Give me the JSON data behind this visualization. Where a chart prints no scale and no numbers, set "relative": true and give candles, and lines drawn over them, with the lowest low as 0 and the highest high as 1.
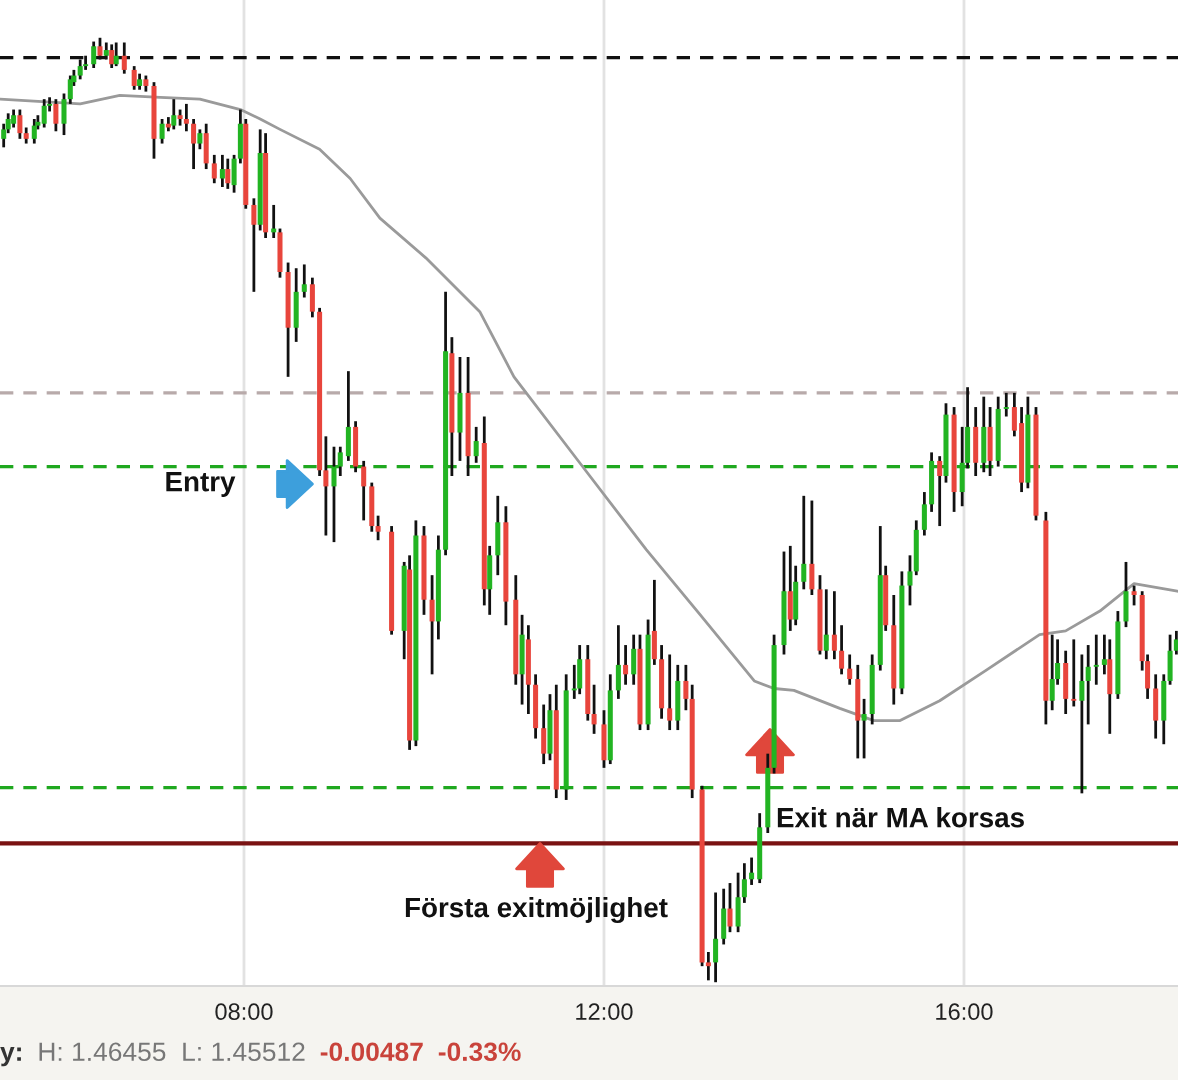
{
  "chart_data": {
    "type": "candlestick",
    "relative": true,
    "tick_labels": "x",
    "grid": "x",
    "xlim": [
      5.289,
      18.378
    ],
    "xticks": [
      {
        "value": 8,
        "label": "08:00"
      },
      {
        "value": 12,
        "label": "12:00"
      },
      {
        "value": 16,
        "label": "16:00"
      }
    ],
    "x": [
      5.33,
      5.38,
      5.44,
      5.51,
      5.58,
      5.67,
      5.71,
      5.78,
      5.84,
      5.91,
      6.0,
      6.07,
      6.11,
      6.18,
      6.24,
      6.33,
      6.4,
      6.47,
      6.53,
      6.58,
      6.67,
      6.78,
      6.84,
      6.91,
      7.0,
      7.09,
      7.16,
      7.22,
      7.29,
      7.36,
      7.44,
      7.51,
      7.58,
      7.67,
      7.76,
      7.82,
      7.89,
      7.96,
      8.02,
      8.11,
      8.18,
      8.24,
      8.33,
      8.4,
      8.49,
      8.58,
      8.67,
      8.76,
      8.84,
      8.91,
      9.0,
      9.07,
      9.16,
      9.24,
      9.33,
      9.42,
      9.49,
      9.64,
      9.78,
      9.84,
      9.91,
      10.0,
      10.09,
      10.16,
      10.24,
      10.31,
      10.4,
      10.49,
      10.58,
      10.67,
      10.73,
      10.82,
      10.91,
      11.02,
      11.09,
      11.16,
      11.24,
      11.33,
      11.4,
      11.47,
      11.58,
      11.67,
      11.73,
      11.82,
      11.89,
      12.0,
      12.07,
      12.16,
      12.24,
      12.33,
      12.4,
      12.49,
      12.56,
      12.64,
      12.73,
      12.82,
      12.91,
      12.98,
      13.09,
      13.16,
      13.24,
      13.33,
      13.4,
      13.49,
      13.56,
      13.64,
      13.73,
      13.82,
      13.89,
      14.0,
      14.07,
      14.13,
      14.22,
      14.31,
      14.4,
      14.47,
      14.56,
      14.64,
      14.73,
      14.82,
      14.89,
      14.98,
      15.07,
      15.13,
      15.22,
      15.31,
      15.4,
      15.47,
      15.56,
      15.64,
      15.73,
      15.8,
      15.89,
      15.98,
      16.04,
      16.13,
      16.22,
      16.29,
      16.38,
      16.47,
      16.56,
      16.64,
      16.71,
      16.8,
      16.91,
      16.98,
      17.04,
      17.13,
      17.22,
      17.31,
      17.38,
      17.47,
      17.56,
      17.62,
      17.71,
      17.8,
      17.89,
      17.98,
      18.04,
      18.13,
      18.22,
      18.29,
      18.36
    ],
    "ohlc": [
      [
        0.893,
        0.909,
        0.884,
        0.903
      ],
      [
        0.903,
        0.92,
        0.899,
        0.914
      ],
      [
        0.909,
        0.924,
        0.905,
        0.918
      ],
      [
        0.918,
        0.924,
        0.893,
        0.899
      ],
      [
        0.899,
        0.905,
        0.888,
        0.893
      ],
      [
        0.893,
        0.914,
        0.888,
        0.907
      ],
      [
        0.907,
        0.918,
        0.903,
        0.911
      ],
      [
        0.909,
        0.935,
        0.905,
        0.928
      ],
      [
        0.928,
        0.937,
        0.922,
        0.93
      ],
      [
        0.93,
        0.935,
        0.901,
        0.909
      ],
      [
        0.909,
        0.941,
        0.897,
        0.935
      ],
      [
        0.935,
        0.96,
        0.93,
        0.956
      ],
      [
        0.953,
        0.966,
        0.949,
        0.96
      ],
      [
        0.96,
        0.977,
        0.956,
        0.97
      ],
      [
        0.97,
        0.981,
        0.966,
        0.972
      ],
      [
        0.972,
        0.996,
        0.968,
        0.991
      ],
      [
        0.991,
        1.0,
        0.977,
        0.981
      ],
      [
        0.981,
        0.995,
        0.977,
        0.987
      ],
      [
        0.987,
        0.993,
        0.968,
        0.972
      ],
      [
        0.972,
        0.995,
        0.97,
        0.981
      ],
      [
        0.981,
        0.995,
        0.962,
        0.966
      ],
      [
        0.966,
        0.97,
        0.945,
        0.949
      ],
      [
        0.949,
        0.962,
        0.945,
        0.956
      ],
      [
        0.956,
        0.96,
        0.943,
        0.949
      ],
      [
        0.949,
        0.953,
        0.872,
        0.893
      ],
      [
        0.893,
        0.914,
        0.888,
        0.909
      ],
      [
        0.909,
        0.916,
        0.901,
        0.905
      ],
      [
        0.907,
        0.935,
        0.903,
        0.918
      ],
      [
        0.918,
        0.924,
        0.907,
        0.914
      ],
      [
        0.914,
        0.93,
        0.901,
        0.909
      ],
      [
        0.909,
        0.914,
        0.861,
        0.888
      ],
      [
        0.888,
        0.903,
        0.882,
        0.899
      ],
      [
        0.899,
        0.909,
        0.861,
        0.867
      ],
      [
        0.867,
        0.876,
        0.846,
        0.851
      ],
      [
        0.851,
        0.876,
        0.842,
        0.861
      ],
      [
        0.861,
        0.872,
        0.84,
        0.846
      ],
      [
        0.844,
        0.876,
        0.836,
        0.872
      ],
      [
        0.872,
        0.924,
        0.867,
        0.909
      ],
      [
        0.909,
        0.914,
        0.819,
        0.823
      ],
      [
        0.823,
        0.83,
        0.731,
        0.802
      ],
      [
        0.802,
        0.903,
        0.796,
        0.878
      ],
      [
        0.878,
        0.899,
        0.788,
        0.794
      ],
      [
        0.794,
        0.823,
        0.788,
        0.798
      ],
      [
        0.794,
        0.798,
        0.746,
        0.752
      ],
      [
        0.752,
        0.762,
        0.641,
        0.693
      ],
      [
        0.693,
        0.756,
        0.678,
        0.731
      ],
      [
        0.731,
        0.76,
        0.725,
        0.739
      ],
      [
        0.739,
        0.746,
        0.704,
        0.71
      ],
      [
        0.71,
        0.714,
        0.536,
        0.542
      ],
      [
        0.542,
        0.578,
        0.473,
        0.525
      ],
      [
        0.525,
        0.567,
        0.466,
        0.546
      ],
      [
        0.546,
        0.567,
        0.536,
        0.561
      ],
      [
        0.557,
        0.647,
        0.552,
        0.588
      ],
      [
        0.588,
        0.594,
        0.54,
        0.546
      ],
      [
        0.546,
        0.552,
        0.489,
        0.525
      ],
      [
        0.525,
        0.529,
        0.477,
        0.483
      ],
      [
        0.483,
        0.494,
        0.468,
        0.477
      ],
      [
        0.477,
        0.483,
        0.368,
        0.372
      ],
      [
        0.372,
        0.445,
        0.342,
        0.441
      ],
      [
        0.437,
        0.452,
        0.246,
        0.256
      ],
      [
        0.256,
        0.489,
        0.25,
        0.473
      ],
      [
        0.473,
        0.483,
        0.389,
        0.405
      ],
      [
        0.405,
        0.431,
        0.326,
        0.382
      ],
      [
        0.382,
        0.473,
        0.363,
        0.458
      ],
      [
        0.458,
        0.731,
        0.452,
        0.668
      ],
      [
        0.666,
        0.683,
        0.536,
        0.582
      ],
      [
        0.582,
        0.662,
        0.552,
        0.624
      ],
      [
        0.624,
        0.662,
        0.536,
        0.557
      ],
      [
        0.557,
        0.588,
        0.55,
        0.573
      ],
      [
        0.571,
        0.599,
        0.399,
        0.416
      ],
      [
        0.416,
        0.462,
        0.389,
        0.452
      ],
      [
        0.452,
        0.515,
        0.431,
        0.487
      ],
      [
        0.487,
        0.504,
        0.378,
        0.403
      ],
      [
        0.405,
        0.431,
        0.315,
        0.326
      ],
      [
        0.326,
        0.389,
        0.294,
        0.368
      ],
      [
        0.363,
        0.378,
        0.284,
        0.315
      ],
      [
        0.315,
        0.326,
        0.258,
        0.269
      ],
      [
        0.269,
        0.294,
        0.231,
        0.242
      ],
      [
        0.242,
        0.305,
        0.235,
        0.288
      ],
      [
        0.288,
        0.315,
        0.195,
        0.204
      ],
      [
        0.204,
        0.326,
        0.193,
        0.309
      ],
      [
        0.309,
        0.336,
        0.3,
        0.311
      ],
      [
        0.311,
        0.357,
        0.305,
        0.342
      ],
      [
        0.342,
        0.357,
        0.277,
        0.284
      ],
      [
        0.284,
        0.315,
        0.263,
        0.273
      ],
      [
        0.273,
        0.288,
        0.227,
        0.235
      ],
      [
        0.235,
        0.326,
        0.231,
        0.309
      ],
      [
        0.309,
        0.378,
        0.3,
        0.336
      ],
      [
        0.336,
        0.357,
        0.315,
        0.326
      ],
      [
        0.326,
        0.368,
        0.315,
        0.353
      ],
      [
        0.353,
        0.368,
        0.267,
        0.273
      ],
      [
        0.273,
        0.384,
        0.267,
        0.368
      ],
      [
        0.372,
        0.426,
        0.336,
        0.342
      ],
      [
        0.342,
        0.357,
        0.279,
        0.29
      ],
      [
        0.29,
        0.347,
        0.267,
        0.277
      ],
      [
        0.277,
        0.336,
        0.267,
        0.319
      ],
      [
        0.319,
        0.336,
        0.288,
        0.3
      ],
      [
        0.3,
        0.315,
        0.195,
        0.204
      ],
      [
        0.204,
        0.208,
        0.017,
        0.021
      ],
      [
        0.021,
        0.032,
        0.002,
        0.017
      ],
      [
        0.021,
        0.095,
        0.0,
        0.046
      ],
      [
        0.046,
        0.099,
        0.04,
        0.078
      ],
      [
        0.078,
        0.105,
        0.053,
        0.059
      ],
      [
        0.059,
        0.116,
        0.053,
        0.09
      ],
      [
        0.09,
        0.126,
        0.084,
        0.109
      ],
      [
        0.109,
        0.132,
        0.103,
        0.116
      ],
      [
        0.109,
        0.179,
        0.105,
        0.164
      ],
      [
        0.164,
        0.242,
        0.158,
        0.227
      ],
      [
        0.227,
        0.368,
        0.221,
        0.357
      ],
      [
        0.357,
        0.456,
        0.347,
        0.414
      ],
      [
        0.414,
        0.462,
        0.372,
        0.384
      ],
      [
        0.384,
        0.441,
        0.378,
        0.424
      ],
      [
        0.424,
        0.515,
        0.416,
        0.443
      ],
      [
        0.443,
        0.51,
        0.41,
        0.416
      ],
      [
        0.416,
        0.431,
        0.347,
        0.351
      ],
      [
        0.351,
        0.416,
        0.342,
        0.368
      ],
      [
        0.368,
        0.414,
        0.342,
        0.351
      ],
      [
        0.351,
        0.378,
        0.326,
        0.332
      ],
      [
        0.332,
        0.347,
        0.315,
        0.321
      ],
      [
        0.321,
        0.336,
        0.237,
        0.277
      ],
      [
        0.277,
        0.3,
        0.237,
        0.284
      ],
      [
        0.284,
        0.347,
        0.273,
        0.336
      ],
      [
        0.336,
        0.483,
        0.33,
        0.431
      ],
      [
        0.431,
        0.441,
        0.372,
        0.378
      ],
      [
        0.378,
        0.41,
        0.294,
        0.311
      ],
      [
        0.311,
        0.435,
        0.305,
        0.42
      ],
      [
        0.42,
        0.452,
        0.399,
        0.435
      ],
      [
        0.435,
        0.489,
        0.431,
        0.479
      ],
      [
        0.479,
        0.519,
        0.473,
        0.506
      ],
      [
        0.506,
        0.561,
        0.498,
        0.552
      ],
      [
        0.552,
        0.557,
        0.483,
        0.536
      ],
      [
        0.536,
        0.613,
        0.529,
        0.601
      ],
      [
        0.601,
        0.609,
        0.498,
        0.519
      ],
      [
        0.519,
        0.588,
        0.504,
        0.55
      ],
      [
        0.55,
        0.63,
        0.544,
        0.588
      ],
      [
        0.588,
        0.609,
        0.536,
        0.55
      ],
      [
        0.55,
        0.62,
        0.54,
        0.588
      ],
      [
        0.588,
        0.609,
        0.536,
        0.552
      ],
      [
        0.552,
        0.62,
        0.546,
        0.607
      ],
      [
        0.607,
        0.624,
        0.599,
        0.609
      ],
      [
        0.609,
        0.624,
        0.578,
        0.584
      ],
      [
        0.592,
        0.609,
        0.519,
        0.529
      ],
      [
        0.529,
        0.62,
        0.523,
        0.601
      ],
      [
        0.601,
        0.609,
        0.489,
        0.494
      ],
      [
        0.489,
        0.498,
        0.273,
        0.298
      ],
      [
        0.298,
        0.368,
        0.288,
        0.321
      ],
      [
        0.321,
        0.363,
        0.315,
        0.338
      ],
      [
        0.338,
        0.351,
        0.284,
        0.3
      ],
      [
        0.3,
        0.363,
        0.292,
        0.298
      ],
      [
        0.298,
        0.347,
        0.2,
        0.319
      ],
      [
        0.319,
        0.357,
        0.273,
        0.334
      ],
      [
        0.334,
        0.368,
        0.315,
        0.336
      ],
      [
        0.336,
        0.368,
        0.326,
        0.342
      ],
      [
        0.342,
        0.363,
        0.263,
        0.305
      ],
      [
        0.305,
        0.393,
        0.3,
        0.382
      ],
      [
        0.382,
        0.445,
        0.376,
        0.414
      ],
      [
        0.414,
        0.42,
        0.399,
        0.41
      ],
      [
        0.41,
        0.414,
        0.33,
        0.34
      ],
      [
        0.34,
        0.347,
        0.3,
        0.311
      ],
      [
        0.311,
        0.326,
        0.258,
        0.277
      ],
      [
        0.277,
        0.326,
        0.252,
        0.319
      ],
      [
        0.319,
        0.368,
        0.315,
        0.351
      ],
      [
        0.351,
        0.372,
        0.347,
        0.363
      ]
    ],
    "colors": [
      "#22b422",
      "#22b422",
      "#22b422",
      "#e8453c",
      "#e8453c",
      "#22b422",
      "#22b422",
      "#22b422",
      "#22b422",
      "#e8453c",
      "#22b422",
      "#22b422",
      "#22b422",
      "#22b422",
      "#22b422",
      "#22b422",
      "#e8453c",
      "#22b422",
      "#e8453c",
      "#22b422",
      "#e8453c",
      "#e8453c",
      "#22b422",
      "#e8453c",
      "#e8453c",
      "#22b422",
      "#e8453c",
      "#22b422",
      "#e8453c",
      "#e8453c",
      "#e8453c",
      "#22b422",
      "#e8453c",
      "#e8453c",
      "#22b422",
      "#e8453c",
      "#22b422",
      "#22b422",
      "#e8453c",
      "#e8453c",
      "#22b422",
      "#e8453c",
      "#22b422",
      "#e8453c",
      "#e8453c",
      "#22b422",
      "#22b422",
      "#e8453c",
      "#e8453c",
      "#e8453c",
      "#22b422",
      "#22b422",
      "#22b422",
      "#e8453c",
      "#e8453c",
      "#e8453c",
      "#e8453c",
      "#e8453c",
      "#22b422",
      "#e8453c",
      "#22b422",
      "#e8453c",
      "#e8453c",
      "#22b422",
      "#22b422",
      "#e8453c",
      "#22b422",
      "#e8453c",
      "#22b422",
      "#e8453c",
      "#22b422",
      "#22b422",
      "#e8453c",
      "#e8453c",
      "#22b422",
      "#e8453c",
      "#e8453c",
      "#e8453c",
      "#22b422",
      "#e8453c",
      "#22b422",
      "#22b422",
      "#22b422",
      "#e8453c",
      "#e8453c",
      "#e8453c",
      "#22b422",
      "#22b422",
      "#e8453c",
      "#22b422",
      "#e8453c",
      "#22b422",
      "#e8453c",
      "#e8453c",
      "#e8453c",
      "#22b422",
      "#e8453c",
      "#e8453c",
      "#e8453c",
      "#e8453c",
      "#22b422",
      "#22b422",
      "#e8453c",
      "#22b422",
      "#22b422",
      "#22b422",
      "#22b422",
      "#22b422",
      "#22b422",
      "#22b422",
      "#e8453c",
      "#22b422",
      "#22b422",
      "#e8453c",
      "#e8453c",
      "#22b422",
      "#e8453c",
      "#e8453c",
      "#e8453c",
      "#e8453c",
      "#22b422",
      "#22b422",
      "#22b422",
      "#e8453c",
      "#e8453c",
      "#22b422",
      "#22b422",
      "#22b422",
      "#22b422",
      "#22b422",
      "#e8453c",
      "#22b422",
      "#e8453c",
      "#22b422",
      "#22b422",
      "#e8453c",
      "#22b422",
      "#e8453c",
      "#22b422",
      "#22b422",
      "#e8453c",
      "#e8453c",
      "#22b422",
      "#e8453c",
      "#e8453c",
      "#22b422",
      "#22b422",
      "#e8453c",
      "#e8453c",
      "#22b422",
      "#22b422",
      "#22b422",
      "#22b422",
      "#e8453c",
      "#22b422",
      "#22b422",
      "#e8453c",
      "#e8453c",
      "#e8453c",
      "#e8453c",
      "#22b422",
      "#22b422",
      "#22b422"
    ],
    "series": [
      {
        "type": "line",
        "color": "#9a9a9a",
        "x": [
          5.29,
          6.18,
          6.62,
          7.07,
          7.51,
          7.96,
          8.18,
          8.4,
          8.84,
          9.18,
          9.51,
          10.02,
          10.62,
          11.0,
          11.73,
          12.47,
          13.07,
          13.67,
          13.89,
          14.11,
          14.62,
          15.0,
          15.29,
          15.73,
          16.24,
          16.84,
          17.13,
          17.51,
          17.89,
          18.37
        ],
        "values": [
          0.935,
          0.93,
          0.939,
          0.937,
          0.935,
          0.924,
          0.914,
          0.903,
          0.882,
          0.851,
          0.809,
          0.767,
          0.71,
          0.641,
          0.55,
          0.458,
          0.389,
          0.319,
          0.311,
          0.309,
          0.29,
          0.277,
          0.277,
          0.298,
          0.33,
          0.368,
          0.372,
          0.393,
          0.422,
          0.414
        ]
      }
    ],
    "ref_lines": [
      {
        "axis": "y",
        "value": 0.979,
        "color": "#111111",
        "line_style": "dashed"
      },
      {
        "axis": "y",
        "value": 0.624,
        "color": "#b8aaaa",
        "line_style": "dashed"
      },
      {
        "axis": "y",
        "value": 0.546,
        "color": "#1fa81f",
        "line_style": "dashed"
      },
      {
        "axis": "y",
        "value": 0.206,
        "color": "#1fa81f",
        "line_style": "dashed"
      },
      {
        "axis": "y",
        "value": 0.147,
        "color": "#7a1212",
        "line_style": "solid"
      }
    ],
    "annotations": [
      "Entry",
      "Första exitmöjlighet",
      "Exit när MA korsas",
      "y:",
      "H: 1.46455  L: 1.45512",
      "-0.00487",
      "-0.33%"
    ]
  }
}
